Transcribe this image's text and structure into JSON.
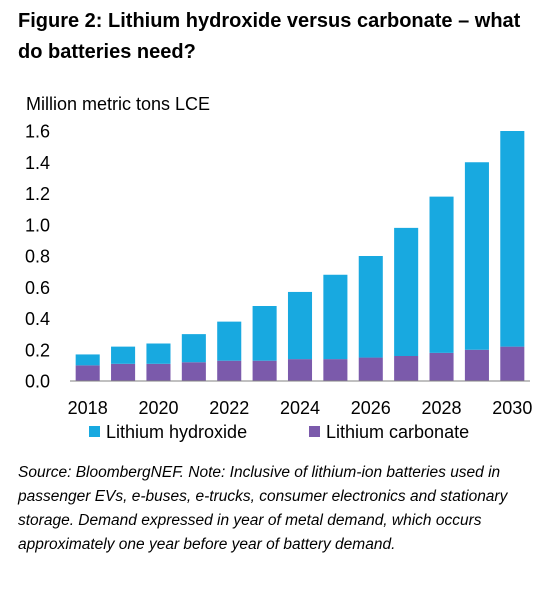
{
  "figure": {
    "title": "Figure 2: Lithium hydroxide versus carbonate – what do batteries need?"
  },
  "chart_data": {
    "type": "bar",
    "stacked": true,
    "ylabel": "Million metric tons LCE",
    "ylim": [
      0,
      1.6
    ],
    "yticks": [
      "0.0",
      "0.2",
      "0.4",
      "0.6",
      "0.8",
      "1.0",
      "1.2",
      "1.4",
      "1.6"
    ],
    "categories": [
      "2018",
      "2019",
      "2020",
      "2021",
      "2022",
      "2023",
      "2024",
      "2025",
      "2026",
      "2027",
      "2028",
      "2029",
      "2030"
    ],
    "xticks": [
      "2018",
      "2020",
      "2022",
      "2024",
      "2026",
      "2028",
      "2030"
    ],
    "series": [
      {
        "name": "Lithium hydroxide",
        "color": "#18A9E0",
        "values": [
          0.07,
          0.11,
          0.13,
          0.18,
          0.25,
          0.35,
          0.43,
          0.54,
          0.65,
          0.82,
          1.0,
          1.2,
          1.38
        ]
      },
      {
        "name": "Lithium carbonate",
        "color": "#7B5AAB",
        "values": [
          0.1,
          0.11,
          0.11,
          0.12,
          0.13,
          0.13,
          0.14,
          0.14,
          0.15,
          0.16,
          0.18,
          0.2,
          0.22
        ]
      }
    ],
    "grid": false,
    "legend_position": "bottom"
  },
  "source": {
    "text": "Source: BloombergNEF. Note: Inclusive of lithium-ion batteries used in passenger EVs, e-buses, e-trucks, consumer electronics and stationary storage. Demand expressed in year of metal demand, which occurs approximately one year before year of battery demand."
  }
}
